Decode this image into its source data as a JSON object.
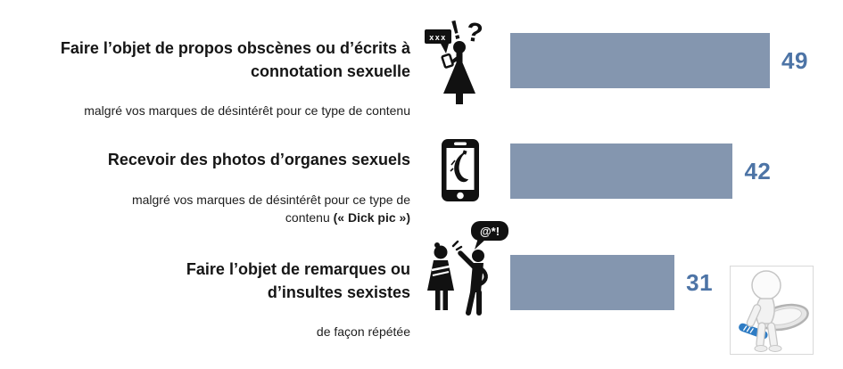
{
  "chart_data": {
    "type": "bar",
    "orientation": "horizontal",
    "xlim": [
      0,
      52
    ],
    "grid": false,
    "legend": false,
    "bar_color": "#8496AF",
    "value_color": "#4D74A6",
    "categories": [
      "Faire l’objet de propos obscènes ou d’écrits à connotation sexuelle",
      "Recevoir des photos d’organes sexuels",
      "Faire l’objet de remarques ou d’insultes sexistes"
    ],
    "values": [
      49,
      42,
      31
    ],
    "items": [
      {
        "title": "Faire l’objet de propos obscènes ou d’écrits à\nconnotation sexuelle",
        "subtitle": "malgré vos marques de désintérêt pour ce type de contenu",
        "value": 49,
        "icon": "woman-obscene-messages-icon"
      },
      {
        "title": "Recevoir des photos d’organes sexuels",
        "subtitle": "malgré vos marques de désintérêt pour ce type de\ncontenu",
        "subtitle_bold": " (« Dick pic »)",
        "value": 42,
        "icon": "phone-banana-icon"
      },
      {
        "title": "Faire l’objet de remarques ou\nd’insultes sexistes",
        "subtitle": "de façon répétée",
        "value": 31,
        "icon": "sexist-insult-icon"
      }
    ],
    "icon_texts": {
      "row1_bubble": "xxx",
      "row1_exclamation": "!",
      "row1_question": "?",
      "row3_bubble": "@*!"
    }
  }
}
